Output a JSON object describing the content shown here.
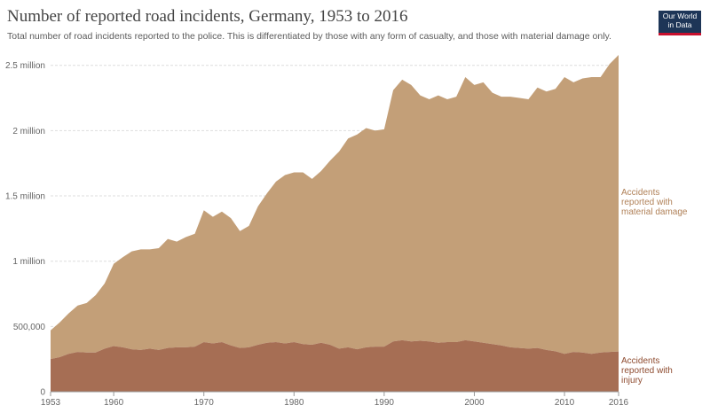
{
  "header": {
    "title": "Number of reported road incidents, Germany, 1953 to 2016",
    "subtitle": "Total number of road incidents reported to the police. This is differentiated by those with any form of casualty, and those with material damage only."
  },
  "logo": {
    "line1": "Our World",
    "line2": "in Data"
  },
  "colors": {
    "injury": "#a66e54",
    "material": "#c39f78",
    "injury_label": "#8e4b2f",
    "material_label": "#b08158"
  },
  "chart_data": {
    "type": "area",
    "stacked": true,
    "title": "Number of reported road incidents, Germany, 1953 to 2016",
    "x_ticks": [
      "1953",
      "1960",
      "1970",
      "1980",
      "1990",
      "2000",
      "2010",
      "2016"
    ],
    "y_ticks": [
      {
        "value": 0,
        "label": "0"
      },
      {
        "value": 500000,
        "label": "500,000"
      },
      {
        "value": 1000000,
        "label": "1 million"
      },
      {
        "value": 1500000,
        "label": "1.5 million"
      },
      {
        "value": 2000000,
        "label": "2 million"
      },
      {
        "value": 2500000,
        "label": "2.5 million"
      }
    ],
    "ylim": [
      0,
      2600000
    ],
    "xlim": [
      1953,
      2016
    ],
    "years": [
      1953,
      1954,
      1955,
      1956,
      1957,
      1958,
      1959,
      1960,
      1961,
      1962,
      1963,
      1964,
      1965,
      1966,
      1967,
      1968,
      1969,
      1970,
      1971,
      1972,
      1973,
      1974,
      1975,
      1976,
      1977,
      1978,
      1979,
      1980,
      1981,
      1982,
      1983,
      1984,
      1985,
      1986,
      1987,
      1988,
      1989,
      1990,
      1991,
      1992,
      1993,
      1994,
      1995,
      1996,
      1997,
      1998,
      1999,
      2000,
      2001,
      2002,
      2003,
      2004,
      2005,
      2006,
      2007,
      2008,
      2009,
      2010,
      2011,
      2012,
      2013,
      2014,
      2015,
      2016
    ],
    "series": [
      {
        "name": "Accidents reported with injury",
        "label_lines": [
          "Accidents",
          "reported with",
          "injury"
        ],
        "values": [
          250000,
          265000,
          290000,
          305000,
          300000,
          300000,
          330000,
          350000,
          340000,
          325000,
          320000,
          330000,
          320000,
          335000,
          340000,
          340000,
          345000,
          380000,
          370000,
          380000,
          355000,
          335000,
          340000,
          360000,
          375000,
          380000,
          370000,
          380000,
          365000,
          360000,
          375000,
          360000,
          330000,
          340000,
          325000,
          340000,
          345000,
          345000,
          385000,
          395000,
          385000,
          390000,
          385000,
          375000,
          380000,
          380000,
          395000,
          385000,
          375000,
          365000,
          355000,
          340000,
          335000,
          330000,
          335000,
          320000,
          310000,
          290000,
          305000,
          300000,
          290000,
          300000,
          305000,
          308000
        ]
      },
      {
        "name": "Accidents reported with material damage",
        "label_lines": [
          "Accidents",
          "reported with",
          "material damage"
        ],
        "totals": [
          470000,
          530000,
          600000,
          660000,
          680000,
          740000,
          830000,
          980000,
          1030000,
          1075000,
          1090000,
          1090000,
          1100000,
          1170000,
          1150000,
          1185000,
          1210000,
          1390000,
          1340000,
          1380000,
          1330000,
          1230000,
          1270000,
          1420000,
          1520000,
          1610000,
          1660000,
          1680000,
          1680000,
          1630000,
          1690000,
          1770000,
          1840000,
          1940000,
          1970000,
          2020000,
          2000000,
          2010000,
          2310000,
          2390000,
          2350000,
          2270000,
          2240000,
          2270000,
          2240000,
          2260000,
          2410000,
          2350000,
          2370000,
          2290000,
          2260000,
          2260000,
          2250000,
          2240000,
          2330000,
          2300000,
          2320000,
          2410000,
          2370000,
          2400000,
          2410000,
          2410000,
          2510000,
          2580000
        ]
      }
    ]
  }
}
